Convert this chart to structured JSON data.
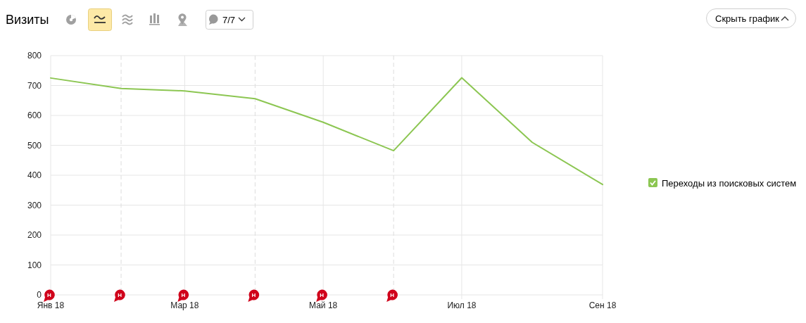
{
  "chart_data": {
    "type": "line",
    "title": "Визиты",
    "x": [
      "2018-01",
      "2018-02",
      "2018-03",
      "2018-04",
      "2018-05",
      "2018-06",
      "2018-07",
      "2018-08",
      "2018-09"
    ],
    "series": [
      {
        "name": "Переходы из поисковых систем",
        "color": "#8cc652",
        "values": [
          725,
          690,
          682,
          656,
          577,
          482,
          726,
          510,
          369
        ]
      }
    ],
    "xlim": [
      "2018-01",
      "2018-09"
    ],
    "xticks": [
      {
        "value": "2018-01",
        "label": "Янв 18"
      },
      {
        "value": "2018-03",
        "label": "Мар 18"
      },
      {
        "value": "2018-05",
        "label": "Май 18"
      },
      {
        "value": "2018-07",
        "label": "Июл 18"
      },
      {
        "value": "2018-09",
        "label": "Сен 18"
      }
    ],
    "ylim": [
      0,
      800
    ],
    "yticks": [
      0,
      100,
      200,
      300,
      400,
      500,
      600,
      700,
      800
    ],
    "grid": true,
    "legend": "right",
    "ref_lines": [
      {
        "axis": "x",
        "value": "2018-02",
        "color": "#dddddd",
        "line_style": "dashed"
      },
      {
        "axis": "x",
        "value": "2018-04",
        "color": "#dddddd",
        "line_style": "dashed"
      },
      {
        "axis": "x",
        "value": "2018-06",
        "color": "#dddddd",
        "line_style": "dashed"
      }
    ],
    "annotations": [
      "7/7",
      "Скрыть график",
      "Н",
      "Н",
      "Н",
      {
        "text": "Н",
        "x": "2018-02",
        "y": 0
      },
      {
        "text": "Н",
        "x": "2018-04",
        "y": 0
      },
      {
        "text": "Н",
        "x": "2018-06",
        "y": 0
      }
    ]
  }
}
